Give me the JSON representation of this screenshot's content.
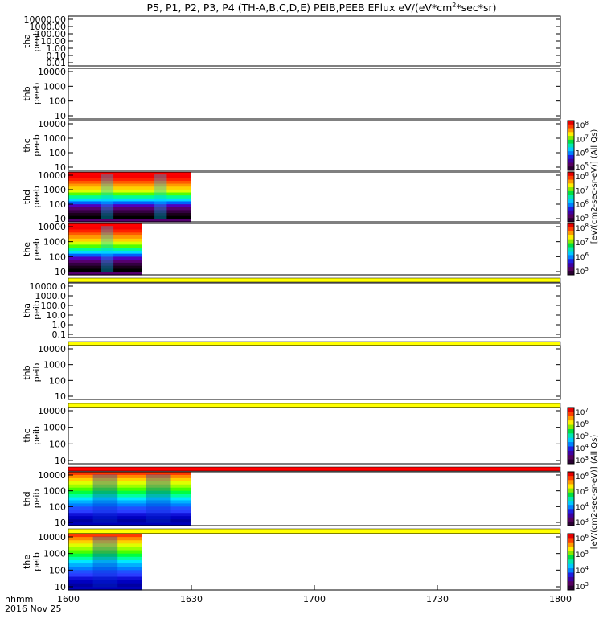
{
  "title_text": "P5, P1, P2, P3, P4 (TH-A,B,C,D,E) PEIB,PEEB EFlux eV/(eV*cm²*sec*sr)",
  "footer": {
    "label_fmt": "hhmm",
    "date": "2016 Nov 25"
  },
  "colorbar_label_electrons": "[eV/(cm2-sec-sr-eV)] (All Qs)",
  "colorbar_label_ions": "[eV/(cm2-sec-sr-eV)] (All Qs)",
  "chart_data": {
    "type": "heatmap",
    "x_label": "hhmm",
    "x_ticks": [
      "1600",
      "1630",
      "1700",
      "1730",
      "1800"
    ],
    "x_range_minutes": [
      0,
      120
    ],
    "y_scale": "log",
    "y_unit": "eV",
    "colorscale": "rainbow (purple low -> red high)",
    "panels": [
      {
        "probe": "tha",
        "product": "peeb",
        "label": [
          "tha",
          "peeb"
        ],
        "ylim": [
          0.01,
          10000
        ],
        "y_ticks": [
          "10000.00",
          "1000.00",
          "100.00",
          "10.00",
          "1.00",
          "0.10",
          "0.01"
        ],
        "data_range_minutes": null,
        "colorbar": null,
        "band_after": null
      },
      {
        "probe": "thb",
        "product": "peeb",
        "label": [
          "thb",
          "peeb"
        ],
        "ylim": [
          10,
          10000
        ],
        "y_ticks": [
          "10000",
          "1000",
          "100",
          "10"
        ],
        "data_range_minutes": null,
        "colorbar": null,
        "band_after": null
      },
      {
        "probe": "thc",
        "product": "peeb",
        "label": [
          "thc",
          "peeb"
        ],
        "ylim": [
          10,
          10000
        ],
        "y_ticks": [
          "10000",
          "1000",
          "100",
          "10"
        ],
        "data_range_minutes": null,
        "colorbar": {
          "ticks": [
            "10^5",
            "10^6",
            "10^7",
            "10^8"
          ],
          "top_exponent": "8"
        },
        "band_after": null
      },
      {
        "probe": "thd",
        "product": "peeb",
        "label": [
          "thd",
          "peeb"
        ],
        "ylim": [
          10,
          10000
        ],
        "y_ticks": [
          "10000",
          "1000",
          "100",
          "10"
        ],
        "data_range_minutes": [
          0,
          30
        ],
        "colorbar": {
          "ticks": [
            "10^5",
            "10^6",
            "10^7",
            "10^8"
          ],
          "top_exponent": "8"
        },
        "band_after": null
      },
      {
        "probe": "the",
        "product": "peeb",
        "label": [
          "the",
          "peeb"
        ],
        "ylim": [
          10,
          10000
        ],
        "y_ticks": [
          "10000",
          "1000",
          "100",
          "10"
        ],
        "data_range_minutes": [
          0,
          18
        ],
        "colorbar": {
          "ticks": [
            "10^5",
            "10^6",
            "10^7",
            "10^8"
          ],
          "top_exponent": "8"
        },
        "band_after": "yellow"
      },
      {
        "probe": "tha",
        "product": "peib",
        "label": [
          "tha",
          "peib"
        ],
        "ylim": [
          0.1,
          10000
        ],
        "y_ticks": [
          "10000.0",
          "1000.0",
          "100.0",
          "10.0",
          "1.0",
          "0.1"
        ],
        "data_range_minutes": null,
        "colorbar": null,
        "band_after": "yellow"
      },
      {
        "probe": "thb",
        "product": "peib",
        "label": [
          "thb",
          "peib"
        ],
        "ylim": [
          10,
          10000
        ],
        "y_ticks": [
          "10000",
          "1000",
          "100",
          "10"
        ],
        "data_range_minutes": null,
        "colorbar": null,
        "band_after": "yellow"
      },
      {
        "probe": "thc",
        "product": "peib",
        "label": [
          "thc",
          "peib"
        ],
        "ylim": [
          10,
          10000
        ],
        "y_ticks": [
          "10000",
          "1000",
          "100",
          "10"
        ],
        "data_range_minutes": null,
        "colorbar": {
          "ticks": [
            "10^3",
            "10^4",
            "10^5",
            "10^6",
            "10^7"
          ],
          "top_exponent": "7"
        },
        "band_after": "red"
      },
      {
        "probe": "thd",
        "product": "peib",
        "label": [
          "thd",
          "peib"
        ],
        "ylim": [
          10,
          10000
        ],
        "y_ticks": [
          "10000",
          "1000",
          "100",
          "10"
        ],
        "data_range_minutes": [
          0,
          30
        ],
        "colorbar": {
          "ticks": [
            "10^3",
            "10^4",
            "10^5",
            "10^6"
          ],
          "top_exponent": "6"
        },
        "band_after": "yellow"
      },
      {
        "probe": "the",
        "product": "peib",
        "label": [
          "the",
          "peib"
        ],
        "ylim": [
          10,
          10000
        ],
        "y_ticks": [
          "10000",
          "1000",
          "100",
          "10"
        ],
        "data_range_minutes": [
          0,
          18
        ],
        "colorbar": {
          "ticks": [
            "10^3",
            "10^4",
            "10^5",
            "10^6"
          ],
          "top_exponent": "6"
        },
        "band_after": null
      }
    ]
  }
}
